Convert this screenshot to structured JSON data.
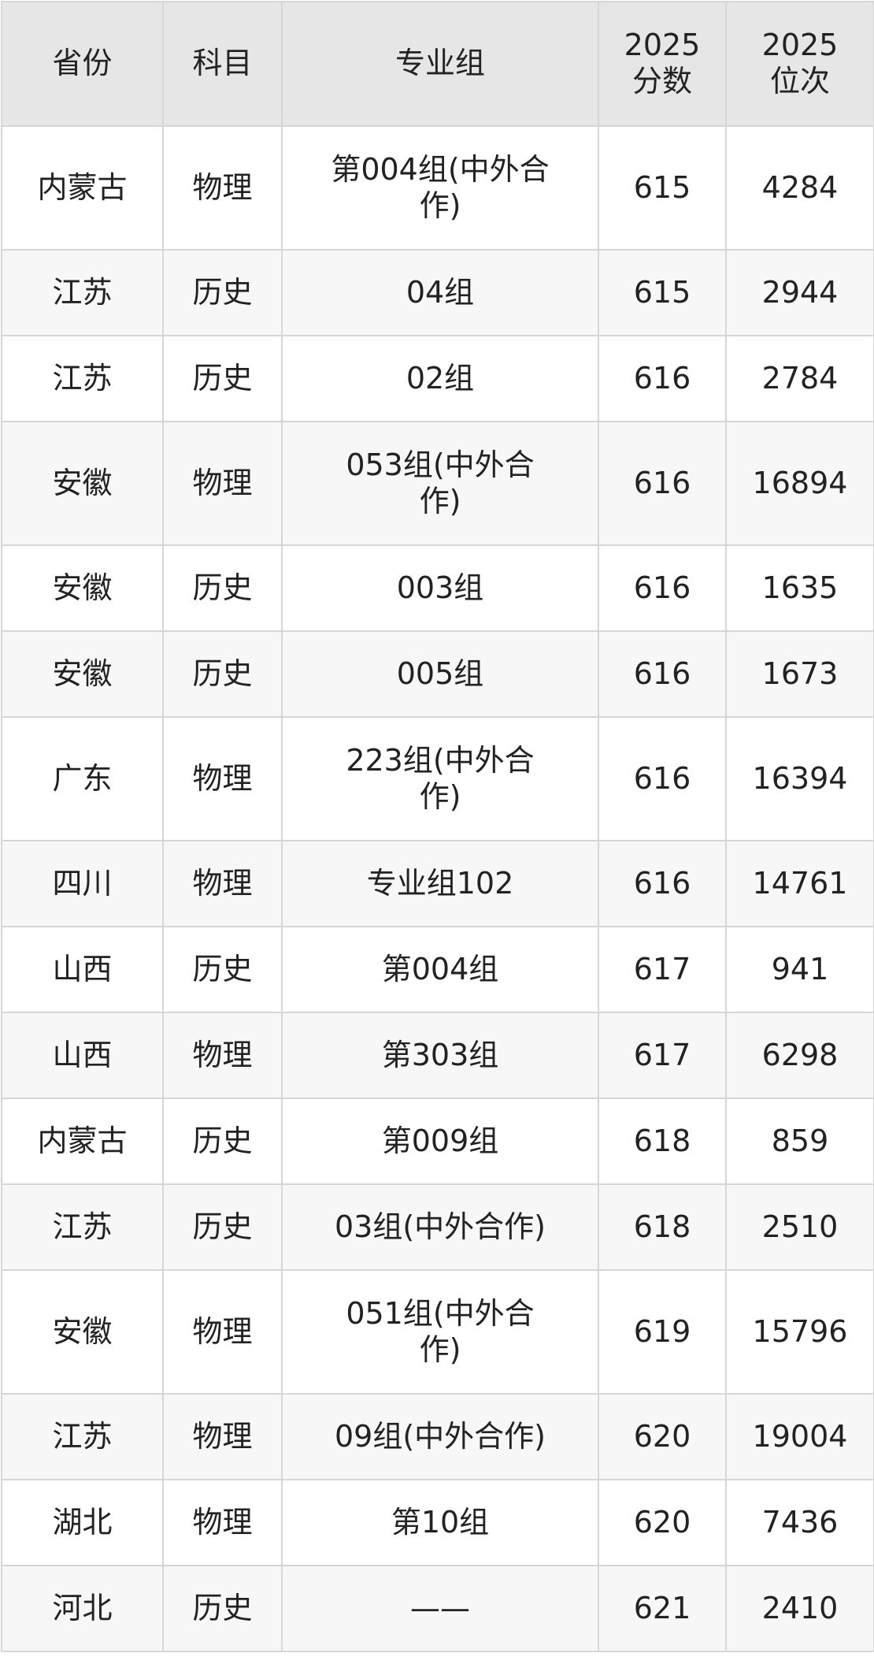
{
  "table": {
    "header": [
      "省份",
      "科目",
      "专业组",
      "2025 分数",
      "2025 位次"
    ],
    "rows": [
      [
        "内蒙古",
        "物理",
        "第004组(中外合作)",
        "615",
        "4284"
      ],
      [
        "江苏",
        "历史",
        "04组",
        "615",
        "2944"
      ],
      [
        "江苏",
        "历史",
        "02组",
        "616",
        "2784"
      ],
      [
        "安徽",
        "物理",
        "053组(中外合作)",
        "616",
        "16894"
      ],
      [
        "安徽",
        "历史",
        "003组",
        "616",
        "1635"
      ],
      [
        "安徽",
        "历史",
        "005组",
        "616",
        "1673"
      ],
      [
        "广东",
        "物理",
        "223组(中外合作)",
        "616",
        "16394"
      ],
      [
        "四川",
        "物理",
        "专业组102",
        "616",
        "14761"
      ],
      [
        "山西",
        "历史",
        "第004组",
        "617",
        "941"
      ],
      [
        "山西",
        "物理",
        "第303组",
        "617",
        "6298"
      ],
      [
        "内蒙古",
        "历史",
        "第009组",
        "618",
        "859"
      ],
      [
        "江苏",
        "历史",
        "03组(中外合作)",
        "618",
        "2510"
      ],
      [
        "安徽",
        "物理",
        "051组(中外合作)",
        "619",
        "15796"
      ],
      [
        "江苏",
        "物理",
        "09组(中外合作)",
        "620",
        "19004"
      ],
      [
        "湖北",
        "物理",
        "第10组",
        "620",
        "7436"
      ],
      [
        "河北",
        "历史",
        "——",
        "621",
        "2410"
      ]
    ]
  }
}
